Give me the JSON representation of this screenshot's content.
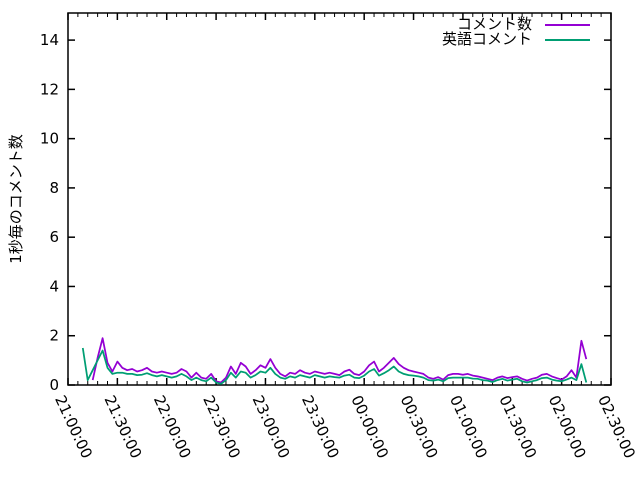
{
  "ylabel": "1秒毎のコメント数",
  "legend": {
    "entries": [
      {
        "label": "コメント数",
        "color": "#9400d3"
      },
      {
        "label": "英語コメント",
        "color": "#009e73"
      }
    ]
  },
  "chart_data": {
    "type": "line",
    "title": "",
    "xlabel": "",
    "ylabel": "1秒毎のコメント数",
    "grid": false,
    "legend_position": "top-right-inside",
    "x_axis": {
      "kind": "time",
      "tick_labels": [
        "21:00:00",
        "21:30:00",
        "22:00:00",
        "22:30:00",
        "23:00:00",
        "23:30:00",
        "00:00:00",
        "00:30:00",
        "01:00:00",
        "01:30:00",
        "02:00:00",
        "02:30:00"
      ],
      "major_tick_every_minutes": 30,
      "minor_tick_every_minutes": 6,
      "range_minutes": [
        0,
        330
      ]
    },
    "y_axis": {
      "ticks": [
        0,
        2,
        4,
        6,
        8,
        10,
        12,
        14
      ],
      "range": [
        0,
        15.1
      ]
    },
    "sampling": {
      "start_minute_after_2100": 9,
      "step_minutes": 3
    },
    "series": [
      {
        "name": "コメント数",
        "color": "#9400d3",
        "values": [
          null,
          null,
          0.2,
          1.1,
          1.9,
          0.9,
          0.55,
          0.95,
          0.7,
          0.6,
          0.65,
          0.55,
          0.6,
          0.7,
          0.55,
          0.5,
          0.55,
          0.5,
          0.45,
          0.5,
          0.65,
          0.55,
          0.3,
          0.5,
          0.3,
          0.25,
          0.45,
          0.15,
          0.1,
          0.3,
          0.75,
          0.45,
          0.9,
          0.75,
          0.45,
          0.6,
          0.8,
          0.7,
          1.05,
          0.7,
          0.45,
          0.35,
          0.5,
          0.45,
          0.6,
          0.5,
          0.45,
          0.55,
          0.5,
          0.45,
          0.5,
          0.45,
          0.4,
          0.55,
          0.62,
          0.45,
          0.4,
          0.55,
          0.8,
          0.95,
          0.55,
          0.7,
          0.9,
          1.1,
          0.85,
          0.7,
          0.6,
          0.55,
          0.5,
          0.45,
          0.3,
          0.25,
          0.32,
          0.22,
          0.4,
          0.45,
          0.45,
          0.42,
          0.45,
          0.38,
          0.35,
          0.3,
          0.25,
          0.2,
          0.3,
          0.35,
          0.28,
          0.32,
          0.35,
          0.25,
          0.18,
          0.25,
          0.3,
          0.42,
          0.45,
          0.35,
          0.28,
          0.22,
          0.35,
          0.6,
          0.3,
          1.8,
          1.05
        ]
      },
      {
        "name": "英語コメント",
        "color": "#009e73",
        "values": [
          1.5,
          0.2,
          0.6,
          1.0,
          1.4,
          0.7,
          0.45,
          0.5,
          0.5,
          0.45,
          0.45,
          0.4,
          0.42,
          0.48,
          0.4,
          0.35,
          0.4,
          0.35,
          0.3,
          0.35,
          0.45,
          0.35,
          0.2,
          0.3,
          0.2,
          0.15,
          0.3,
          0.1,
          0.05,
          0.2,
          0.5,
          0.3,
          0.55,
          0.5,
          0.3,
          0.4,
          0.55,
          0.5,
          0.7,
          0.45,
          0.3,
          0.25,
          0.35,
          0.3,
          0.4,
          0.35,
          0.3,
          0.4,
          0.35,
          0.3,
          0.35,
          0.32,
          0.3,
          0.38,
          0.42,
          0.3,
          0.28,
          0.38,
          0.55,
          0.65,
          0.38,
          0.48,
          0.6,
          0.75,
          0.55,
          0.45,
          0.4,
          0.38,
          0.35,
          0.3,
          0.2,
          0.18,
          0.22,
          0.15,
          0.28,
          0.3,
          0.3,
          0.3,
          0.3,
          0.26,
          0.25,
          0.2,
          0.18,
          0.12,
          0.2,
          0.25,
          0.18,
          0.22,
          0.25,
          0.15,
          0.1,
          0.15,
          0.2,
          0.28,
          0.3,
          0.22,
          0.18,
          0.15,
          0.22,
          0.3,
          0.2,
          0.85,
          0.1
        ]
      }
    ]
  }
}
